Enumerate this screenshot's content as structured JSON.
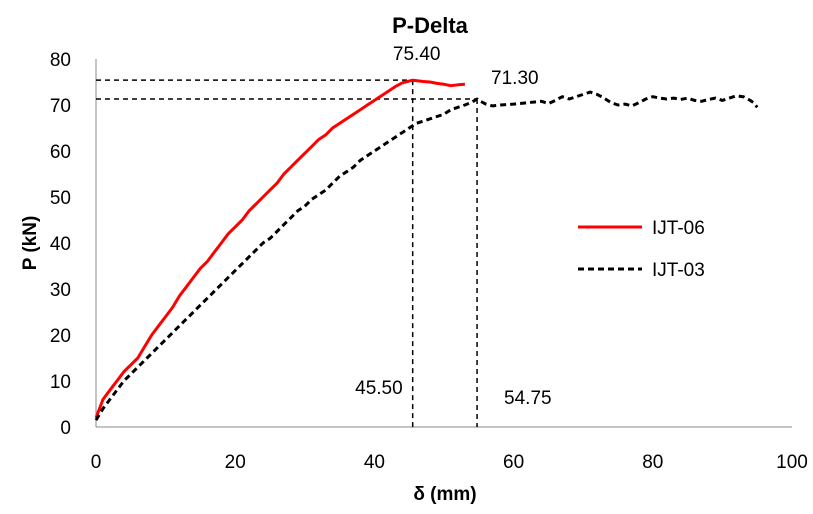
{
  "chart_data": {
    "type": "line",
    "title": "P-Delta",
    "xlabel": "δ (mm)",
    "ylabel": "P (kN)",
    "xlim": [
      0,
      100
    ],
    "ylim": [
      0,
      80
    ],
    "x_ticks": [
      "0",
      "20",
      "40",
      "60",
      "80",
      "100"
    ],
    "y_ticks": [
      "0",
      "10",
      "20",
      "30",
      "40",
      "50",
      "60",
      "70",
      "80"
    ],
    "grid": false,
    "legend_position": "right",
    "series": [
      {
        "name": "IJT-06",
        "color": "#ff0000",
        "style": "solid",
        "points": [
          [
            0,
            2
          ],
          [
            0.5,
            4
          ],
          [
            1,
            6
          ],
          [
            2,
            8
          ],
          [
            3,
            10
          ],
          [
            4,
            12
          ],
          [
            5,
            13.5
          ],
          [
            6,
            15
          ],
          [
            7,
            17.5
          ],
          [
            8,
            20
          ],
          [
            9,
            22
          ],
          [
            10,
            24
          ],
          [
            11,
            26
          ],
          [
            12,
            28.5
          ],
          [
            13,
            30.5
          ],
          [
            14,
            32.5
          ],
          [
            15,
            34.5
          ],
          [
            16,
            36
          ],
          [
            17,
            38
          ],
          [
            18,
            40
          ],
          [
            19,
            42
          ],
          [
            20,
            43.5
          ],
          [
            21,
            45
          ],
          [
            22,
            47
          ],
          [
            23,
            48.5
          ],
          [
            24,
            50
          ],
          [
            25,
            51.5
          ],
          [
            26,
            53
          ],
          [
            27,
            55
          ],
          [
            28,
            56.5
          ],
          [
            29,
            58
          ],
          [
            30,
            59.5
          ],
          [
            31,
            61
          ],
          [
            32,
            62.5
          ],
          [
            33,
            63.5
          ],
          [
            34,
            65
          ],
          [
            35,
            66
          ],
          [
            36,
            67
          ],
          [
            37,
            68
          ],
          [
            38,
            69
          ],
          [
            39,
            70
          ],
          [
            40,
            71
          ],
          [
            41,
            72
          ],
          [
            42,
            73
          ],
          [
            43,
            74
          ],
          [
            44,
            74.8
          ],
          [
            45,
            75.2
          ],
          [
            45.5,
            75.4
          ],
          [
            46,
            75.3
          ],
          [
            47,
            75.1
          ],
          [
            48,
            75.0
          ],
          [
            49,
            74.7
          ],
          [
            50,
            74.5
          ],
          [
            51,
            74.2
          ],
          [
            52,
            74.4
          ],
          [
            53,
            74.5
          ]
        ]
      },
      {
        "name": "IJT-03",
        "color": "#000000",
        "style": "dashed",
        "points": [
          [
            0,
            1.5
          ],
          [
            1,
            4
          ],
          [
            2,
            6
          ],
          [
            3,
            8
          ],
          [
            4,
            10
          ],
          [
            5,
            11.5
          ],
          [
            6,
            13
          ],
          [
            7,
            14.5
          ],
          [
            8,
            16
          ],
          [
            9,
            17.5
          ],
          [
            10,
            19
          ],
          [
            11,
            20.5
          ],
          [
            12,
            22
          ],
          [
            13,
            23.5
          ],
          [
            14,
            25
          ],
          [
            15,
            26.5
          ],
          [
            16,
            28
          ],
          [
            17,
            29.5
          ],
          [
            18,
            31
          ],
          [
            19,
            32.5
          ],
          [
            20,
            34
          ],
          [
            21,
            35.5
          ],
          [
            22,
            37
          ],
          [
            23,
            38.5
          ],
          [
            24,
            40
          ],
          [
            25,
            41
          ],
          [
            26,
            42.5
          ],
          [
            27,
            44
          ],
          [
            28,
            45.5
          ],
          [
            29,
            47
          ],
          [
            30,
            48
          ],
          [
            31,
            49.5
          ],
          [
            32,
            50.5
          ],
          [
            33,
            51.5
          ],
          [
            34,
            53
          ],
          [
            35,
            54.5
          ],
          [
            36,
            55.5
          ],
          [
            37,
            56.5
          ],
          [
            38,
            58
          ],
          [
            39,
            59
          ],
          [
            40,
            60
          ],
          [
            41,
            61
          ],
          [
            42,
            62
          ],
          [
            43,
            63
          ],
          [
            44,
            64
          ],
          [
            45,
            65
          ],
          [
            46,
            66
          ],
          [
            47,
            66.5
          ],
          [
            48,
            67
          ],
          [
            49,
            67.5
          ],
          [
            50,
            68
          ],
          [
            51,
            69
          ],
          [
            52,
            69.5
          ],
          [
            53,
            70
          ],
          [
            54,
            70.6
          ],
          [
            54.75,
            71.3
          ],
          [
            55,
            71.0
          ],
          [
            56,
            70.2
          ],
          [
            57,
            69.8
          ],
          [
            58,
            70.0
          ],
          [
            60,
            70.2
          ],
          [
            62,
            70.5
          ],
          [
            64,
            70.8
          ],
          [
            65,
            70.3
          ],
          [
            66,
            71.0
          ],
          [
            67,
            71.8
          ],
          [
            68,
            71.3
          ],
          [
            69,
            71.8
          ],
          [
            70,
            72.3
          ],
          [
            71,
            72.8
          ],
          [
            72,
            72.3
          ],
          [
            73,
            71.5
          ],
          [
            74,
            70.5
          ],
          [
            75,
            70.0
          ],
          [
            76,
            70.2
          ],
          [
            77,
            69.8
          ],
          [
            78,
            70.5
          ],
          [
            79,
            71.3
          ],
          [
            80,
            71.8
          ],
          [
            81,
            71.5
          ],
          [
            82,
            71.3
          ],
          [
            83,
            71.5
          ],
          [
            84,
            71.2
          ],
          [
            85,
            71.5
          ],
          [
            86,
            71.0
          ],
          [
            87,
            70.8
          ],
          [
            88,
            71.2
          ],
          [
            89,
            71.5
          ],
          [
            90,
            71.0
          ],
          [
            91,
            71.5
          ],
          [
            92,
            72.0
          ],
          [
            93,
            71.8
          ],
          [
            94,
            71.0
          ],
          [
            94.5,
            70.5
          ],
          [
            95,
            69.5
          ]
        ]
      }
    ],
    "reference_lines": [
      {
        "label": "75.40",
        "x": 45.5,
        "y": 75.4
      },
      {
        "label": "71.30",
        "x": 54.75,
        "y": 71.3
      }
    ],
    "x_annotations": [
      {
        "label": "45.50",
        "x": 45.5
      },
      {
        "label": "54.75",
        "x": 54.75
      }
    ]
  }
}
